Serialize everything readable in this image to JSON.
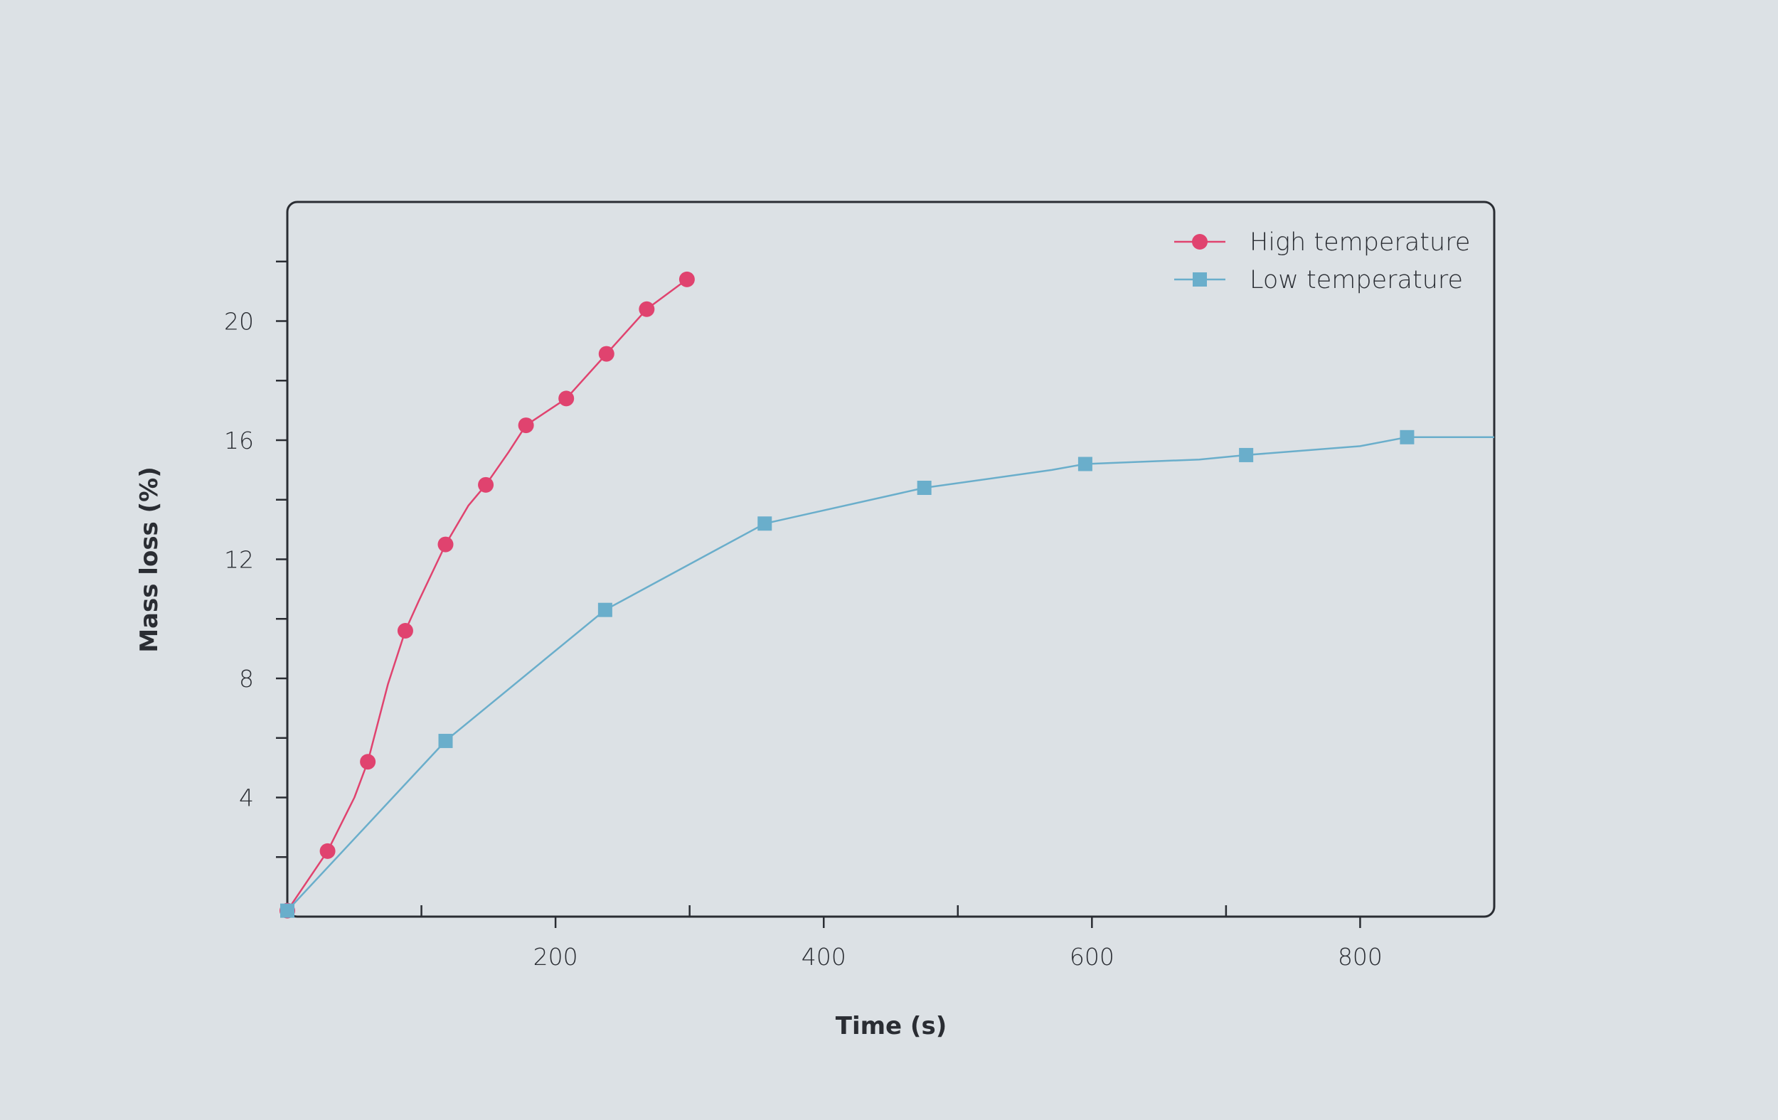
{
  "chart_data": {
    "type": "line",
    "xlabel": "Time (s)",
    "ylabel": "Mass loss (%)",
    "xlim": [
      0,
      900
    ],
    "ylim": [
      0,
      24
    ],
    "x_ticks_major": [
      200,
      400,
      600,
      800
    ],
    "x_ticks_minor": [
      100,
      300,
      500,
      700
    ],
    "y_ticks_major": [
      4,
      8,
      12,
      16,
      20
    ],
    "y_ticks_minor": [
      2,
      6,
      10,
      14,
      18,
      22
    ],
    "legend_position": "top-right",
    "grid": false,
    "series": [
      {
        "name": "High temperature",
        "color": "#e0436f",
        "marker": "circle",
        "line_x": [
          0,
          30,
          50,
          60,
          75,
          88,
          98,
          118,
          135,
          148,
          165,
          178,
          208,
          238,
          268,
          298
        ],
        "line_y": [
          0.2,
          2.2,
          4.0,
          5.2,
          7.8,
          9.6,
          10.6,
          12.5,
          13.8,
          14.5,
          15.6,
          16.5,
          17.4,
          18.9,
          20.4,
          21.4
        ],
        "marker_x": [
          0,
          30,
          60,
          88,
          118,
          148,
          178,
          208,
          238,
          268,
          298
        ],
        "marker_y": [
          0.2,
          2.2,
          5.2,
          9.6,
          12.5,
          14.5,
          16.5,
          17.4,
          18.9,
          20.4,
          21.4
        ]
      },
      {
        "name": "Low temperature",
        "color": "#6aaecb",
        "marker": "square",
        "line_x": [
          0,
          118,
          237,
          356,
          475,
          570,
          595,
          680,
          715,
          800,
          835,
          900
        ],
        "line_y": [
          0.2,
          5.9,
          10.3,
          13.2,
          14.4,
          15.0,
          15.2,
          15.35,
          15.5,
          15.8,
          16.1,
          16.1
        ],
        "marker_x": [
          0,
          118,
          237,
          356,
          475,
          595,
          715,
          835
        ],
        "marker_y": [
          0.2,
          5.9,
          10.3,
          13.2,
          14.4,
          15.2,
          15.5,
          16.1
        ]
      }
    ]
  }
}
